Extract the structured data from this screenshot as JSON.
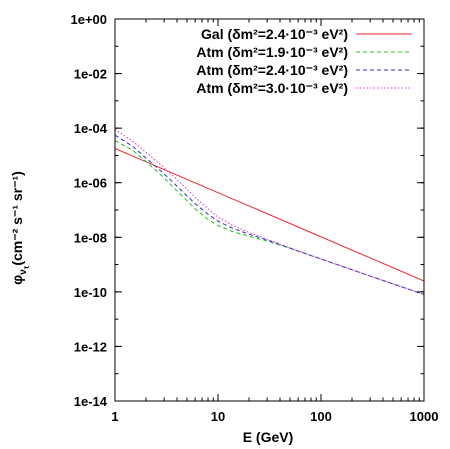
{
  "chart_data": {
    "type": "line",
    "title": "",
    "xlabel": "E (GeV)",
    "ylabel_main": "φ",
    "ylabel_sub": "ν",
    "ylabel_subsub": "τ",
    "ylabel_units": "(cm⁻² s⁻¹ sr⁻¹)",
    "xscale": "log",
    "yscale": "log",
    "xlim": [
      1,
      1000
    ],
    "ylim": [
      1e-14,
      1
    ],
    "x_ticks": [
      {
        "value": 1,
        "label": "1"
      },
      {
        "value": 10,
        "label": "10"
      },
      {
        "value": 100,
        "label": "100"
      },
      {
        "value": 1000,
        "label": "1000"
      }
    ],
    "y_ticks": [
      {
        "value": 1,
        "label": "1e+00"
      },
      {
        "value": 0.01,
        "label": "1e-02"
      },
      {
        "value": 0.0001,
        "label": "1e-04"
      },
      {
        "value": 1e-06,
        "label": "1e-06"
      },
      {
        "value": 1e-08,
        "label": "1e-08"
      },
      {
        "value": 1e-10,
        "label": "1e-10"
      },
      {
        "value": 1e-12,
        "label": "1e-12"
      },
      {
        "value": 1e-14,
        "label": "1e-14"
      }
    ],
    "grid": false,
    "legend_position": "top-right",
    "series": [
      {
        "name": "Gal (δm²=2.4·10⁻³ eV²)",
        "color": "#e8222e",
        "dash": "solid",
        "x": [
          1,
          1000
        ],
        "y": [
          1.8e-05,
          2.5e-10
        ]
      },
      {
        "name": "Atm (δm²=1.9·10⁻³ eV²)",
        "color": "#20c020",
        "dash": "dashed",
        "x": [
          1,
          1.5,
          2,
          3,
          4,
          5,
          6,
          8,
          10,
          14,
          20,
          30,
          50,
          100,
          300,
          1000
        ],
        "y": [
          3.5e-05,
          1.5e-05,
          6e-06,
          1.5e-06,
          5e-07,
          2.2e-07,
          1.1e-07,
          4.5e-08,
          2.7e-08,
          1.6e-08,
          1.1e-08,
          7.3e-09,
          3.9e-09,
          1.6e-09,
          3.8e-10,
          8e-11
        ]
      },
      {
        "name": "Atm (δm²=2.4·10⁻³ eV²)",
        "color": "#3030c0",
        "dash": "dashed",
        "x": [
          1,
          1.5,
          2,
          3,
          4,
          5,
          6,
          8,
          10,
          14,
          20,
          30,
          50,
          100,
          300,
          1000
        ],
        "y": [
          5.5e-05,
          2.1e-05,
          8e-06,
          2.1e-06,
          7.5e-07,
          3.3e-07,
          1.7e-07,
          7e-08,
          3.9e-08,
          2.1e-08,
          1.3e-08,
          7.9e-09,
          4e-09,
          1.6e-09,
          3.8e-10,
          8e-11
        ]
      },
      {
        "name": "Atm (δm²=3.0·10⁻³ eV²)",
        "color": "#e030e0",
        "dash": "dotted",
        "x": [
          1,
          1.5,
          2,
          3,
          4,
          5,
          6,
          8,
          10,
          14,
          20,
          30,
          50,
          100,
          300,
          1000
        ],
        "y": [
          9e-05,
          3.2e-05,
          1.3e-05,
          3.5e-06,
          1.3e-06,
          5.8e-07,
          2.9e-07,
          1.1e-07,
          5.5e-08,
          2.7e-08,
          1.5e-08,
          8.6e-09,
          4.1e-09,
          1.6e-09,
          3.8e-10,
          8e-11
        ]
      }
    ]
  }
}
